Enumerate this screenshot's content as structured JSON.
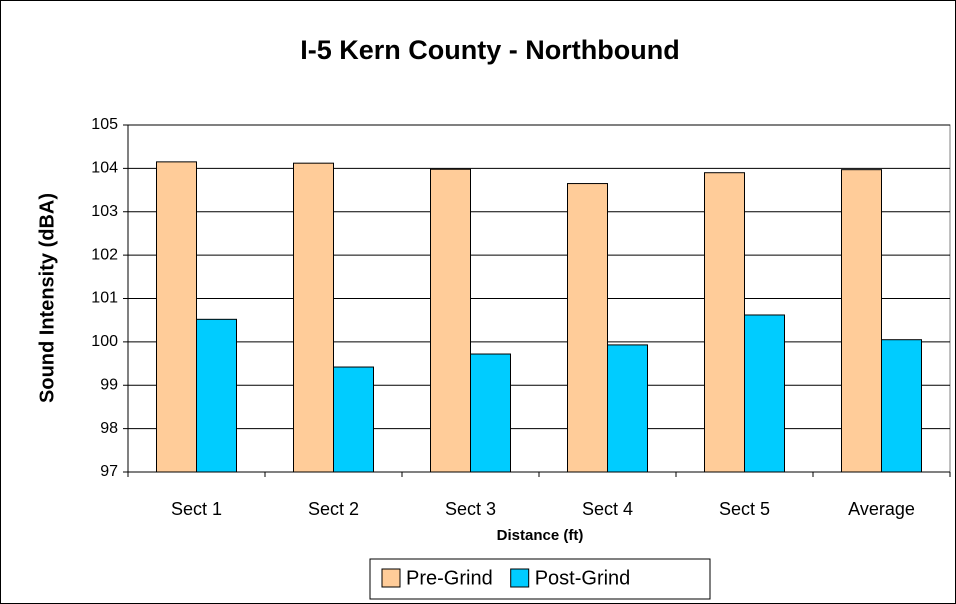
{
  "chart_data": {
    "type": "bar",
    "title": "I-5 Kern County - Northbound",
    "x_label": "Distance (ft)",
    "y_label": "Sound Intensity (dBA)",
    "categories": [
      "Sect 1",
      "Sect 2",
      "Sect 3",
      "Sect 4",
      "Sect 5",
      "Average"
    ],
    "series": [
      {
        "name": "Pre-Grind",
        "color": "#FFCC99",
        "values": [
          104.15,
          104.12,
          103.98,
          103.65,
          103.9,
          103.97
        ]
      },
      {
        "name": "Post-Grind",
        "color": "#00CCFF",
        "values": [
          100.52,
          99.42,
          99.72,
          99.93,
          100.62,
          100.05
        ]
      }
    ],
    "ylim": [
      97,
      105
    ],
    "yticks": [
      97,
      98,
      99,
      100,
      101,
      102,
      103,
      104,
      105
    ],
    "grid": true,
    "legend": "bottom"
  }
}
